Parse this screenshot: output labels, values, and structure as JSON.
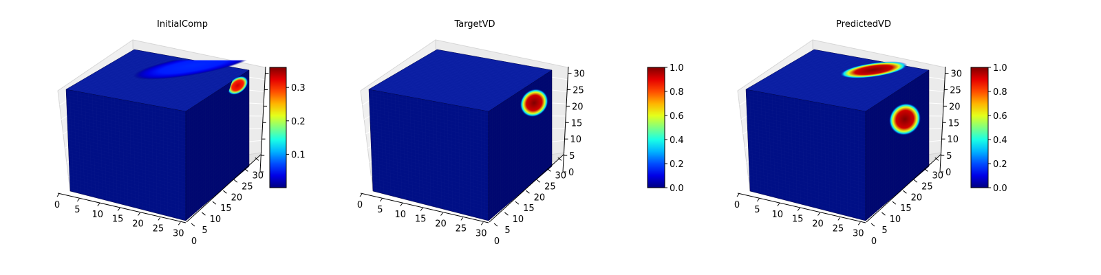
{
  "chart_data": [
    {
      "type": "heatmap",
      "title": "InitialComp",
      "x_ticks": [
        "0",
        "5",
        "10",
        "15",
        "20",
        "25",
        "30"
      ],
      "y_ticks": [
        "0",
        "5",
        "10",
        "15",
        "20",
        "25",
        "30"
      ],
      "z_ticks": [],
      "xlim": [
        0,
        32
      ],
      "ylim": [
        0,
        32
      ],
      "zlim": [
        0,
        32
      ],
      "colorbar": {
        "range": [
          0.0,
          0.36
        ],
        "ticks": [
          "0.1",
          "0.2",
          "0.3"
        ],
        "tick_values": [
          0.1,
          0.2,
          0.3
        ],
        "colormap": "jet"
      },
      "features": [
        {
          "face": "right",
          "u": 0.82,
          "v": 0.83,
          "ru": 0.14,
          "rv": 0.07,
          "angle": -38,
          "value": 0.33
        },
        {
          "face": "top",
          "u": 0.55,
          "v": 0.9,
          "ru": 0.5,
          "rv": 0.12,
          "angle": -10,
          "value": 0.06
        }
      ],
      "grid": true
    },
    {
      "type": "heatmap",
      "title": "TargetVD",
      "x_ticks": [
        "0",
        "5",
        "10",
        "15",
        "20",
        "25",
        "30"
      ],
      "y_ticks": [
        "0",
        "5",
        "10",
        "15",
        "20",
        "25",
        "30"
      ],
      "z_ticks": [
        "0",
        "5",
        "10",
        "15",
        "20",
        "25",
        "30"
      ],
      "xlim": [
        0,
        32
      ],
      "ylim": [
        0,
        32
      ],
      "zlim": [
        0,
        32
      ],
      "colorbar": {
        "range": [
          0.0,
          1.0
        ],
        "ticks": [
          "0.0",
          "0.2",
          "0.4",
          "0.6",
          "0.8",
          "1.0"
        ],
        "tick_values": [
          0.0,
          0.2,
          0.4,
          0.6,
          0.8,
          1.0
        ],
        "colormap": "jet"
      },
      "features": [
        {
          "face": "right",
          "u": 0.72,
          "v": 0.72,
          "ru": 0.18,
          "rv": 0.12,
          "angle": -45,
          "value": 1.0
        }
      ],
      "grid": true
    },
    {
      "type": "heatmap",
      "title": "PredictedVD",
      "x_ticks": [
        "0",
        "5",
        "10",
        "15",
        "20",
        "25",
        "30"
      ],
      "y_ticks": [
        "0",
        "5",
        "10",
        "15",
        "20",
        "25",
        "30"
      ],
      "z_ticks": [
        "0",
        "5",
        "10",
        "15",
        "20",
        "25",
        "30"
      ],
      "xlim": [
        0,
        32
      ],
      "ylim": [
        0,
        32
      ],
      "zlim": [
        0,
        32
      ],
      "colorbar": {
        "range": [
          0.0,
          1.0
        ],
        "ticks": [
          "0.0",
          "0.2",
          "0.4",
          "0.6",
          "0.8",
          "1.0"
        ],
        "tick_values": [
          0.0,
          0.2,
          0.4,
          0.6,
          0.8,
          1.0
        ],
        "colormap": "jet"
      },
      "features": [
        {
          "face": "right",
          "u": 0.62,
          "v": 0.62,
          "ru": 0.2,
          "rv": 0.14,
          "angle": -50,
          "value": 1.0
        },
        {
          "face": "top",
          "u": 0.6,
          "v": 0.82,
          "ru": 0.28,
          "rv": 0.09,
          "angle": -8,
          "value": 1.0
        }
      ],
      "grid": true
    }
  ]
}
